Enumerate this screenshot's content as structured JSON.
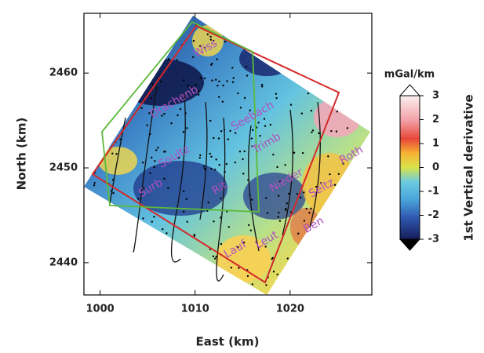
{
  "chart_data": {
    "type": "map",
    "x_label": "East (km)",
    "y_label": "North (km)",
    "xlim": [
      998.3,
      1028.6
    ],
    "ylim": [
      2436.6,
      2466.3
    ],
    "xticks": [
      1000,
      1010,
      1020
    ],
    "yticks": [
      2440,
      2450,
      2460
    ],
    "colorbar": {
      "unit": "mGal/km",
      "label": "1st Vertical derivative",
      "lim": [
        -3,
        3
      ],
      "ticks": [
        3,
        2,
        1,
        0,
        -1,
        -2,
        -3
      ]
    },
    "places": [
      "Wiss",
      "Drachenb",
      "Seebach",
      "Soultz",
      "Trimb",
      "Surb",
      "Rit",
      "Nieder",
      "Seltz",
      "Roth",
      "Ben",
      "Lauf",
      "Leut"
    ]
  }
}
